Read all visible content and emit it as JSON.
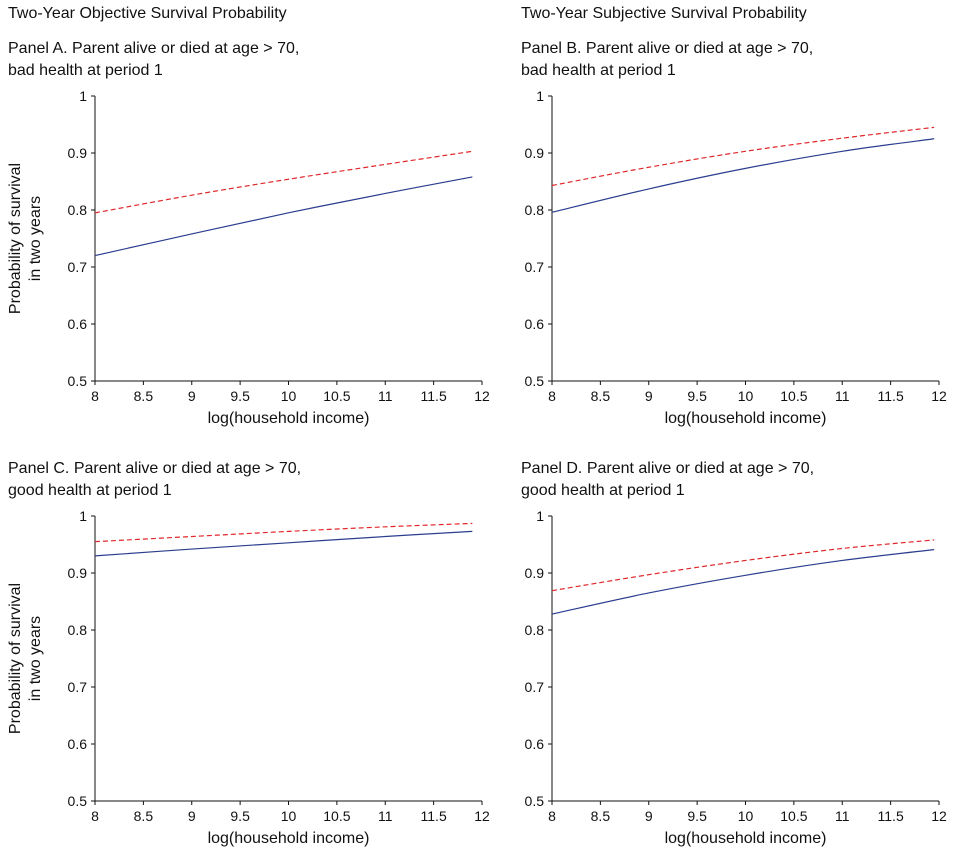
{
  "figure": {
    "col_titles": [
      "Two-Year Objective Survival Probability",
      "Two-Year Subjective Survival Probability"
    ]
  },
  "colors": {
    "solid": "#2b3d8f",
    "dashed": "#e0282a",
    "axis": "#111111"
  },
  "chart_data": [
    {
      "type": "line",
      "panel_title": [
        "Panel A. Parent alive or died at age > 70,",
        "bad health at period 1"
      ],
      "xlabel": "log(household income)",
      "ylabel": [
        "Probability of survival",
        "in two years"
      ],
      "xlim": [
        8,
        12
      ],
      "ylim": [
        0.5,
        1
      ],
      "xticks": [
        "8",
        "8.5",
        "9",
        "9.5",
        "10",
        "10.5",
        "11",
        "11.5",
        "12"
      ],
      "yticks": [
        "0.5",
        "0.6",
        "0.7",
        "0.8",
        "0.9",
        "1"
      ],
      "grid": false,
      "series": [
        {
          "style": "solid",
          "x": [
            8,
            9,
            10,
            11,
            11.9
          ],
          "y": [
            0.72,
            0.758,
            0.795,
            0.829,
            0.858
          ]
        },
        {
          "style": "dashed",
          "x": [
            8,
            9,
            10,
            11,
            11.9
          ],
          "y": [
            0.795,
            0.826,
            0.854,
            0.88,
            0.903
          ]
        }
      ]
    },
    {
      "type": "line",
      "panel_title": [
        "Panel B. Parent alive or died at age > 70,",
        "bad health at period 1"
      ],
      "xlabel": "log(household income)",
      "ylabel": [],
      "xlim": [
        8,
        12
      ],
      "ylim": [
        0.5,
        1
      ],
      "xticks": [
        "8",
        "8.5",
        "9",
        "9.5",
        "10",
        "10.5",
        "11",
        "11.5",
        "12"
      ],
      "yticks": [
        "0.5",
        "0.6",
        "0.7",
        "0.8",
        "0.9",
        "1"
      ],
      "grid": false,
      "series": [
        {
          "style": "solid",
          "x": [
            8,
            9,
            10,
            11,
            11.95
          ],
          "y": [
            0.796,
            0.837,
            0.873,
            0.903,
            0.925
          ]
        },
        {
          "style": "dashed",
          "x": [
            8,
            9,
            10,
            11,
            11.95
          ],
          "y": [
            0.843,
            0.875,
            0.903,
            0.926,
            0.945
          ]
        }
      ]
    },
    {
      "type": "line",
      "panel_title": [
        "Panel C. Parent alive or died at age > 70,",
        "good health at period 1"
      ],
      "xlabel": "log(household income)",
      "ylabel": [
        "Probability of survival",
        "in two years"
      ],
      "xlim": [
        8,
        12
      ],
      "ylim": [
        0.5,
        1
      ],
      "xticks": [
        "8",
        "8.5",
        "9",
        "9.5",
        "10",
        "10.5",
        "11",
        "11.5",
        "12"
      ],
      "yticks": [
        "0.5",
        "0.6",
        "0.7",
        "0.8",
        "0.9",
        "1"
      ],
      "grid": false,
      "series": [
        {
          "style": "solid",
          "x": [
            8,
            9,
            10,
            11,
            11.9
          ],
          "y": [
            0.93,
            0.942,
            0.953,
            0.964,
            0.973
          ]
        },
        {
          "style": "dashed",
          "x": [
            8,
            9,
            10,
            11,
            11.9
          ],
          "y": [
            0.955,
            0.964,
            0.973,
            0.981,
            0.987
          ]
        }
      ]
    },
    {
      "type": "line",
      "panel_title": [
        "Panel D. Parent alive or died at age > 70,",
        "good health at period 1"
      ],
      "xlabel": "log(household income)",
      "ylabel": [],
      "xlim": [
        8,
        12
      ],
      "ylim": [
        0.5,
        1
      ],
      "xticks": [
        "8",
        "8.5",
        "9",
        "9.5",
        "10",
        "10.5",
        "11",
        "11.5",
        "12"
      ],
      "yticks": [
        "0.5",
        "0.6",
        "0.7",
        "0.8",
        "0.9",
        "1"
      ],
      "grid": false,
      "series": [
        {
          "style": "solid",
          "x": [
            8,
            9,
            10,
            11,
            11.95
          ],
          "y": [
            0.828,
            0.865,
            0.896,
            0.922,
            0.941
          ]
        },
        {
          "style": "dashed",
          "x": [
            8,
            9,
            10,
            11,
            11.95
          ],
          "y": [
            0.869,
            0.897,
            0.922,
            0.943,
            0.958
          ]
        }
      ]
    }
  ]
}
